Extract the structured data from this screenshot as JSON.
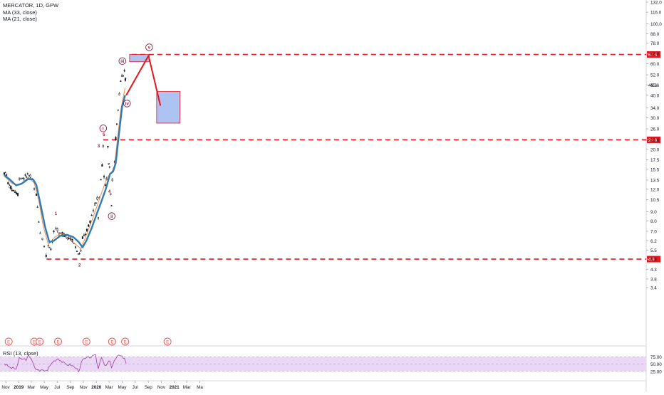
{
  "header": {
    "symbol_line": "MERCATOR, 1D, GPW",
    "ma_slow_label": "MA (33, close)",
    "ma_fast_label": "MA (21, close)"
  },
  "rsi_panel": {
    "label": "RSI (13, close)",
    "ticks": [
      "75.00",
      "50.00",
      "25.00"
    ]
  },
  "colors": {
    "candle": "#131722",
    "ma_slow": "#2e7bb6",
    "ma_fast": "#f08b47",
    "level_line": "#e8151c",
    "projection_box_fill": "#a9c1f2",
    "projection_box_stroke": "#e8151c",
    "rsi_line": "#9c3d9c",
    "rsi_band": "#ead7f5",
    "earnings_marker": "#e35353"
  },
  "chart_data": {
    "type": "candlestick",
    "scale": "log",
    "ylim": [
      3.0,
      132.0
    ],
    "price_ticks": [
      "132.0",
      "116.0",
      "100.0",
      "88.0",
      "78.0",
      "68.0",
      "60.0",
      "52.0",
      "45.6",
      "40.0",
      "34.0",
      "30.0",
      "26.0",
      "22.6",
      "20.0",
      "17.5",
      "15.5",
      "13.5",
      "12.0",
      "10.5",
      "9.0",
      "8.0",
      "7.0",
      "6.2",
      "5.5",
      "4.9",
      "4.3",
      "3.8",
      "3.4"
    ],
    "time_ticks": [
      "Nov",
      "2019",
      "Mar",
      "May",
      "Jul",
      "Sep",
      "Nov",
      "2020",
      "Mar",
      "May",
      "Jul",
      "Sep",
      "Nov",
      "2021",
      "Mar",
      "Ma"
    ],
    "price_series": [
      {
        "x": "2018-10-25",
        "y": 14.8
      },
      {
        "x": "2018-11-05",
        "y": 14.3
      },
      {
        "x": "2018-11-12",
        "y": 13.0
      },
      {
        "x": "2018-11-20",
        "y": 12.4
      },
      {
        "x": "2018-12-01",
        "y": 12.0
      },
      {
        "x": "2018-12-15",
        "y": 11.7
      },
      {
        "x": "2018-12-28",
        "y": 11.3
      },
      {
        "x": "2019-01-04",
        "y": 13.8
      },
      {
        "x": "2019-01-20",
        "y": 13.9
      },
      {
        "x": "2019-02-01",
        "y": 14.0
      },
      {
        "x": "2019-02-12",
        "y": 14.6
      },
      {
        "x": "2019-02-25",
        "y": 14.0
      },
      {
        "x": "2019-03-05",
        "y": 13.6
      },
      {
        "x": "2019-03-15",
        "y": 12.0
      },
      {
        "x": "2019-03-25",
        "y": 11.2
      },
      {
        "x": "2019-04-05",
        "y": 8.0
      },
      {
        "x": "2019-04-12",
        "y": 6.9
      },
      {
        "x": "2019-04-22",
        "y": 6.4
      },
      {
        "x": "2019-05-01",
        "y": 5.8
      },
      {
        "x": "2019-05-10",
        "y": 5.1
      },
      {
        "x": "2019-05-20",
        "y": 5.9
      },
      {
        "x": "2019-06-01",
        "y": 5.6
      },
      {
        "x": "2019-06-15",
        "y": 6.9
      },
      {
        "x": "2019-06-25",
        "y": 7.3
      },
      {
        "x": "2019-07-10",
        "y": 6.7
      },
      {
        "x": "2019-07-25",
        "y": 6.8
      },
      {
        "x": "2019-08-10",
        "y": 6.6
      },
      {
        "x": "2019-08-25",
        "y": 6.4
      },
      {
        "x": "2019-09-10",
        "y": 6.3
      },
      {
        "x": "2019-09-25",
        "y": 5.7
      },
      {
        "x": "2019-10-08",
        "y": 5.2
      },
      {
        "x": "2019-10-20",
        "y": 5.4
      },
      {
        "x": "2019-10-28",
        "y": 6.4
      },
      {
        "x": "2019-11-10",
        "y": 6.8
      },
      {
        "x": "2019-11-25",
        "y": 7.4
      },
      {
        "x": "2019-12-10",
        "y": 8.6
      },
      {
        "x": "2019-12-25",
        "y": 9.8
      },
      {
        "x": "2020-01-05",
        "y": 10.6
      },
      {
        "x": "2020-01-10",
        "y": 8.4
      },
      {
        "x": "2020-01-15",
        "y": 10.8
      },
      {
        "x": "2020-01-22",
        "y": 13.5
      },
      {
        "x": "2020-01-28",
        "y": 16.5
      },
      {
        "x": "2020-02-02",
        "y": 21.0
      },
      {
        "x": "2020-02-06",
        "y": 14.5
      },
      {
        "x": "2020-02-12",
        "y": 12.5
      },
      {
        "x": "2020-02-18",
        "y": 13.8
      },
      {
        "x": "2020-02-24",
        "y": 20.5
      },
      {
        "x": "2020-02-28",
        "y": 17.0
      },
      {
        "x": "2020-03-03",
        "y": 16.0
      },
      {
        "x": "2020-03-08",
        "y": 11.5
      },
      {
        "x": "2020-03-12",
        "y": 9.8
      },
      {
        "x": "2020-03-16",
        "y": 13.5
      },
      {
        "x": "2020-03-22",
        "y": 15.5
      },
      {
        "x": "2020-03-27",
        "y": 17.0
      },
      {
        "x": "2020-04-01",
        "y": 23.0
      },
      {
        "x": "2020-04-06",
        "y": 27.5
      },
      {
        "x": "2020-04-12",
        "y": 33.0
      },
      {
        "x": "2020-04-18",
        "y": 41.0
      },
      {
        "x": "2020-04-24",
        "y": 48.0
      },
      {
        "x": "2020-04-30",
        "y": 51.0
      },
      {
        "x": "2020-05-06",
        "y": 50.0
      },
      {
        "x": "2020-05-12",
        "y": 54.0
      },
      {
        "x": "2020-05-16",
        "y": 49.0
      },
      {
        "x": "2020-05-20",
        "y": 42.0
      }
    ],
    "ma_slow": [
      {
        "x": "2018-10-25",
        "y": 14.4
      },
      {
        "x": "2018-11-20",
        "y": 13.6
      },
      {
        "x": "2018-12-20",
        "y": 12.6
      },
      {
        "x": "2019-01-15",
        "y": 12.9
      },
      {
        "x": "2019-02-15",
        "y": 13.7
      },
      {
        "x": "2019-03-10",
        "y": 13.6
      },
      {
        "x": "2019-03-25",
        "y": 12.7
      },
      {
        "x": "2019-04-15",
        "y": 9.7
      },
      {
        "x": "2019-05-05",
        "y": 7.4
      },
      {
        "x": "2019-05-25",
        "y": 6.1
      },
      {
        "x": "2019-06-15",
        "y": 6.2
      },
      {
        "x": "2019-07-15",
        "y": 6.6
      },
      {
        "x": "2019-08-15",
        "y": 6.7
      },
      {
        "x": "2019-09-15",
        "y": 6.5
      },
      {
        "x": "2019-10-10",
        "y": 6.1
      },
      {
        "x": "2019-10-28",
        "y": 5.7
      },
      {
        "x": "2019-11-15",
        "y": 6.2
      },
      {
        "x": "2019-12-10",
        "y": 7.3
      },
      {
        "x": "2020-01-05",
        "y": 8.9
      },
      {
        "x": "2020-01-25",
        "y": 10.3
      },
      {
        "x": "2020-02-15",
        "y": 12.1
      },
      {
        "x": "2020-03-05",
        "y": 14.6
      },
      {
        "x": "2020-03-20",
        "y": 15.1
      },
      {
        "x": "2020-04-01",
        "y": 16.8
      },
      {
        "x": "2020-04-15",
        "y": 23.8
      },
      {
        "x": "2020-05-01",
        "y": 34.5
      },
      {
        "x": "2020-05-15",
        "y": 40.0
      }
    ],
    "ma_fast": [
      {
        "x": "2018-10-25",
        "y": 14.2
      },
      {
        "x": "2018-12-01",
        "y": 12.9
      },
      {
        "x": "2019-01-10",
        "y": 12.7
      },
      {
        "x": "2019-02-15",
        "y": 14.0
      },
      {
        "x": "2019-03-15",
        "y": 13.0
      },
      {
        "x": "2019-04-05",
        "y": 10.5
      },
      {
        "x": "2019-04-25",
        "y": 7.6
      },
      {
        "x": "2019-05-20",
        "y": 5.9
      },
      {
        "x": "2019-06-20",
        "y": 6.5
      },
      {
        "x": "2019-07-20",
        "y": 6.8
      },
      {
        "x": "2019-08-20",
        "y": 6.6
      },
      {
        "x": "2019-09-20",
        "y": 6.0
      },
      {
        "x": "2019-10-20",
        "y": 5.6
      },
      {
        "x": "2019-11-20",
        "y": 6.9
      },
      {
        "x": "2019-12-20",
        "y": 8.6
      },
      {
        "x": "2020-01-20",
        "y": 11.0
      },
      {
        "x": "2020-02-20",
        "y": 13.9
      },
      {
        "x": "2020-03-10",
        "y": 14.8
      },
      {
        "x": "2020-03-25",
        "y": 15.9
      },
      {
        "x": "2020-04-10",
        "y": 23.5
      },
      {
        "x": "2020-04-25",
        "y": 33.5
      },
      {
        "x": "2020-05-15",
        "y": 44.0
      }
    ],
    "horizontal_levels": [
      {
        "value": 67.5,
        "label": "67.5",
        "from": "2020-06-15"
      },
      {
        "value": 22.6,
        "label": "22.6",
        "from": "2020-02-02"
      },
      {
        "value": 4.9,
        "label": "4.9",
        "from": "2019-05-12"
      }
    ],
    "current_price": {
      "value": 45.6,
      "label": "45.6"
    },
    "projection": {
      "path": [
        {
          "x": "2020-05-20",
          "y": 40.0
        },
        {
          "x": "2020-09-02",
          "y": 66.5
        },
        {
          "x": "2020-10-28",
          "y": 35.0
        }
      ],
      "target_zone": {
        "x1": "2020-06-05",
        "x2": "2020-09-05",
        "y1": 61.5,
        "y2": 67.5
      },
      "correction_zone": {
        "x1": "2020-10-10",
        "x2": "2021-01-28",
        "y1": 28.0,
        "y2": 42.0
      }
    },
    "wave_labels": [
      {
        "text": "1",
        "x": "2019-06-25",
        "y": 8.8,
        "circled": false
      },
      {
        "text": "2",
        "x": "2019-10-14",
        "y": 4.55,
        "circled": false
      },
      {
        "text": "3",
        "x": "2020-01-12",
        "y": 21.0,
        "circled": false
      },
      {
        "text": "5",
        "x": "2020-02-05",
        "y": 24.3,
        "circled": false
      },
      {
        "text": "4",
        "x": "2020-03-02",
        "y": 11.7,
        "circled": false
      },
      {
        "text": "i",
        "x": "2020-02-02",
        "y": 26.2,
        "circled": true
      },
      {
        "text": "ii",
        "x": "2020-03-13",
        "y": 8.5,
        "circled": true
      },
      {
        "text": "iii",
        "x": "2020-05-02",
        "y": 62.0,
        "circled": true
      },
      {
        "text": "iv",
        "x": "2020-05-24",
        "y": 36.0,
        "circled": true
      },
      {
        "text": "v",
        "x": "2020-09-05",
        "y": 74.0,
        "circled": true
      }
    ],
    "earnings_markers": {
      "label": "E",
      "dates": [
        "2018-11-15",
        "2019-03-15",
        "2019-04-10",
        "2019-07-05",
        "2019-11-15",
        "2020-03-15",
        "2020-05-15",
        "2020-11-30"
      ]
    },
    "rsi": {
      "range": [
        0,
        100
      ],
      "band": [
        25,
        75
      ],
      "values": [
        {
          "x": "2018-10-25",
          "y": 52
        },
        {
          "x": "2018-11-20",
          "y": 38
        },
        {
          "x": "2018-12-20",
          "y": 33
        },
        {
          "x": "2019-01-04",
          "y": 68
        },
        {
          "x": "2019-02-05",
          "y": 66
        },
        {
          "x": "2019-02-15",
          "y": 78
        },
        {
          "x": "2019-03-10",
          "y": 55
        },
        {
          "x": "2019-03-20",
          "y": 36
        },
        {
          "x": "2019-04-10",
          "y": 24
        },
        {
          "x": "2019-04-25",
          "y": 31
        },
        {
          "x": "2019-05-10",
          "y": 25
        },
        {
          "x": "2019-06-10",
          "y": 58
        },
        {
          "x": "2019-07-05",
          "y": 70
        },
        {
          "x": "2019-08-05",
          "y": 50
        },
        {
          "x": "2019-09-05",
          "y": 47
        },
        {
          "x": "2019-10-10",
          "y": 28
        },
        {
          "x": "2019-10-28",
          "y": 64
        },
        {
          "x": "2019-12-01",
          "y": 74
        },
        {
          "x": "2019-12-28",
          "y": 78
        },
        {
          "x": "2020-01-10",
          "y": 34
        },
        {
          "x": "2020-01-25",
          "y": 77
        },
        {
          "x": "2020-02-10",
          "y": 46
        },
        {
          "x": "2020-03-05",
          "y": 60
        },
        {
          "x": "2020-03-12",
          "y": 36
        },
        {
          "x": "2020-04-01",
          "y": 70
        },
        {
          "x": "2020-04-15",
          "y": 80
        },
        {
          "x": "2020-05-01",
          "y": 74
        },
        {
          "x": "2020-05-12",
          "y": 72
        },
        {
          "x": "2020-05-20",
          "y": 52
        }
      ]
    }
  }
}
